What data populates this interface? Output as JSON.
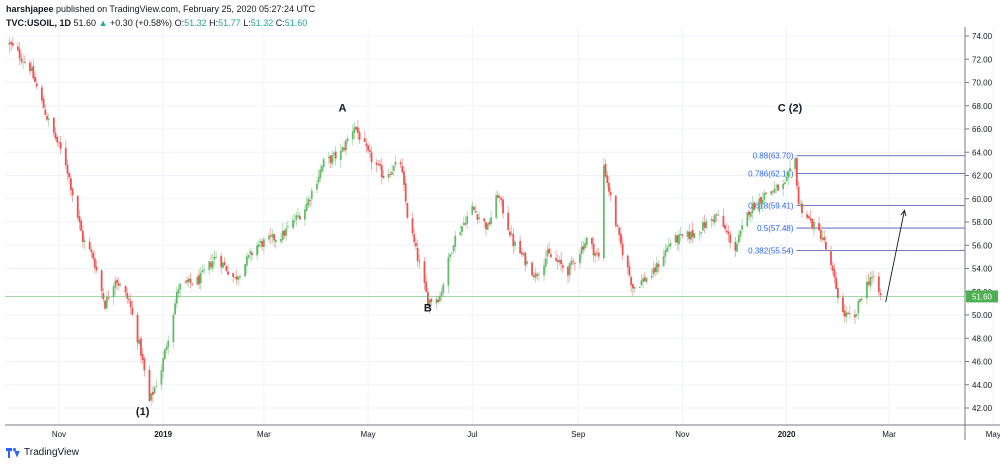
{
  "header": {
    "line1_user": "harshjapee",
    "line1_rest": " published on TradingView.com, February 25, 2020 05:27:24 UTC",
    "symbol": "TVC:USOIL, 1D",
    "last": "51.60",
    "change_arrow": "▲",
    "change": "+0.30 (+0.58%)",
    "o_label": "O:",
    "o_val": "51.32",
    "h_label": "H:",
    "h_val": "51.77",
    "l_label": "L:",
    "l_val": "51.32",
    "c_label": "C:",
    "c_val": "51.60"
  },
  "footer": {
    "brand": "TradingView"
  },
  "colors": {
    "up": "#26a69a",
    "down": "#ef5350",
    "fib": "#3f51b5",
    "price_line": "#4caf50"
  },
  "chart_data": {
    "type": "candlestick",
    "y_axis_labels": [
      "74.00",
      "72.00",
      "70.00",
      "68.00",
      "66.00",
      "64.00",
      "62.00",
      "60.00",
      "58.00",
      "56.00",
      "54.00",
      "52.00",
      "50.00",
      "48.00",
      "46.00",
      "44.00",
      "42.00"
    ],
    "ylim": [
      40.5,
      75.5
    ],
    "x_axis_labels": [
      "Nov",
      "2019",
      "Mar",
      "May",
      "Jul",
      "Sep",
      "Nov",
      "2020",
      "Mar",
      "May"
    ],
    "price_label": "51.60",
    "anchors": [
      {
        "date": "2018-10-03",
        "price": 73.3
      },
      {
        "date": "2018-10-08",
        "price": 72.5
      },
      {
        "date": "2018-10-15",
        "price": 71.3
      },
      {
        "date": "2018-10-25",
        "price": 67.0
      },
      {
        "date": "2018-11-05",
        "price": 63.1
      },
      {
        "date": "2018-11-15",
        "price": 56.5
      },
      {
        "date": "2018-11-21",
        "price": 55.0
      },
      {
        "date": "2018-11-28",
        "price": 50.9
      },
      {
        "date": "2018-12-04",
        "price": 53.2
      },
      {
        "date": "2018-12-12",
        "price": 51.2
      },
      {
        "date": "2018-12-19",
        "price": 46.8
      },
      {
        "date": "2018-12-24",
        "price": 42.5
      },
      {
        "date": "2018-12-31",
        "price": 45.4
      },
      {
        "date": "2019-01-10",
        "price": 52.4
      },
      {
        "date": "2019-01-22",
        "price": 53.0
      },
      {
        "date": "2019-02-01",
        "price": 55.1
      },
      {
        "date": "2019-02-12",
        "price": 53.1
      },
      {
        "date": "2019-02-25",
        "price": 56.0
      },
      {
        "date": "2019-03-12",
        "price": 56.9
      },
      {
        "date": "2019-03-25",
        "price": 59.2
      },
      {
        "date": "2019-04-05",
        "price": 63.1
      },
      {
        "date": "2019-04-15",
        "price": 63.9
      },
      {
        "date": "2019-04-23",
        "price": 66.3
      },
      {
        "date": "2019-05-01",
        "price": 63.8
      },
      {
        "date": "2019-05-10",
        "price": 62.0
      },
      {
        "date": "2019-05-20",
        "price": 63.1
      },
      {
        "date": "2019-05-24",
        "price": 58.6
      },
      {
        "date": "2019-06-05",
        "price": 51.2
      },
      {
        "date": "2019-06-12",
        "price": 51.6
      },
      {
        "date": "2019-06-20",
        "price": 56.4
      },
      {
        "date": "2019-07-01",
        "price": 59.2
      },
      {
        "date": "2019-07-10",
        "price": 57.5
      },
      {
        "date": "2019-07-16",
        "price": 60.4
      },
      {
        "date": "2019-07-25",
        "price": 56.2
      },
      {
        "date": "2019-08-07",
        "price": 53.4
      },
      {
        "date": "2019-08-14",
        "price": 55.2
      },
      {
        "date": "2019-08-26",
        "price": 53.8
      },
      {
        "date": "2019-09-06",
        "price": 56.5
      },
      {
        "date": "2019-09-13",
        "price": 54.9
      },
      {
        "date": "2019-09-16",
        "price": 62.9
      },
      {
        "date": "2019-09-25",
        "price": 56.5
      },
      {
        "date": "2019-10-03",
        "price": 52.4
      },
      {
        "date": "2019-10-15",
        "price": 53.6
      },
      {
        "date": "2019-10-25",
        "price": 56.3
      },
      {
        "date": "2019-11-08",
        "price": 57.0
      },
      {
        "date": "2019-11-21",
        "price": 58.6
      },
      {
        "date": "2019-12-02",
        "price": 55.7
      },
      {
        "date": "2019-12-10",
        "price": 59.0
      },
      {
        "date": "2019-12-20",
        "price": 60.5
      },
      {
        "date": "2019-12-31",
        "price": 61.1
      },
      {
        "date": "2020-01-06",
        "price": 63.3
      },
      {
        "date": "2020-01-08",
        "price": 59.6
      },
      {
        "date": "2020-01-15",
        "price": 58.0
      },
      {
        "date": "2020-01-22",
        "price": 56.7
      },
      {
        "date": "2020-01-28",
        "price": 53.5
      },
      {
        "date": "2020-02-03",
        "price": 50.1
      },
      {
        "date": "2020-02-10",
        "price": 49.6
      },
      {
        "date": "2020-02-13",
        "price": 51.4
      },
      {
        "date": "2020-02-19",
        "price": 53.3
      },
      {
        "date": "2020-02-21",
        "price": 52.9
      },
      {
        "date": "2020-02-25",
        "price": 51.6
      }
    ],
    "fib_levels": [
      {
        "label": "0.88(63.70)",
        "price": 63.7
      },
      {
        "label": "0.786(62.16)",
        "price": 62.16
      },
      {
        "label": "0.618(59.41)",
        "price": 59.41
      },
      {
        "label": "0.5(57.48)",
        "price": 57.48
      },
      {
        "label": "0.382(55.54)",
        "price": 55.54
      }
    ],
    "fib_start_date": "2020-01-08",
    "wave_labels": [
      {
        "text": "(1)",
        "date": "2018-12-20",
        "price": 41.4
      },
      {
        "text": "A",
        "date": "2019-04-16",
        "price": 67.5
      },
      {
        "text": "B",
        "date": "2019-06-05",
        "price": 50.3
      },
      {
        "text": "C  (2)",
        "date": "2020-01-03",
        "price": 67.5
      }
    ],
    "projection_arrow": {
      "from": {
        "date": "2020-02-28",
        "price": 51.1
      },
      "to": {
        "date": "2020-03-10",
        "price": 59.0
      }
    }
  }
}
